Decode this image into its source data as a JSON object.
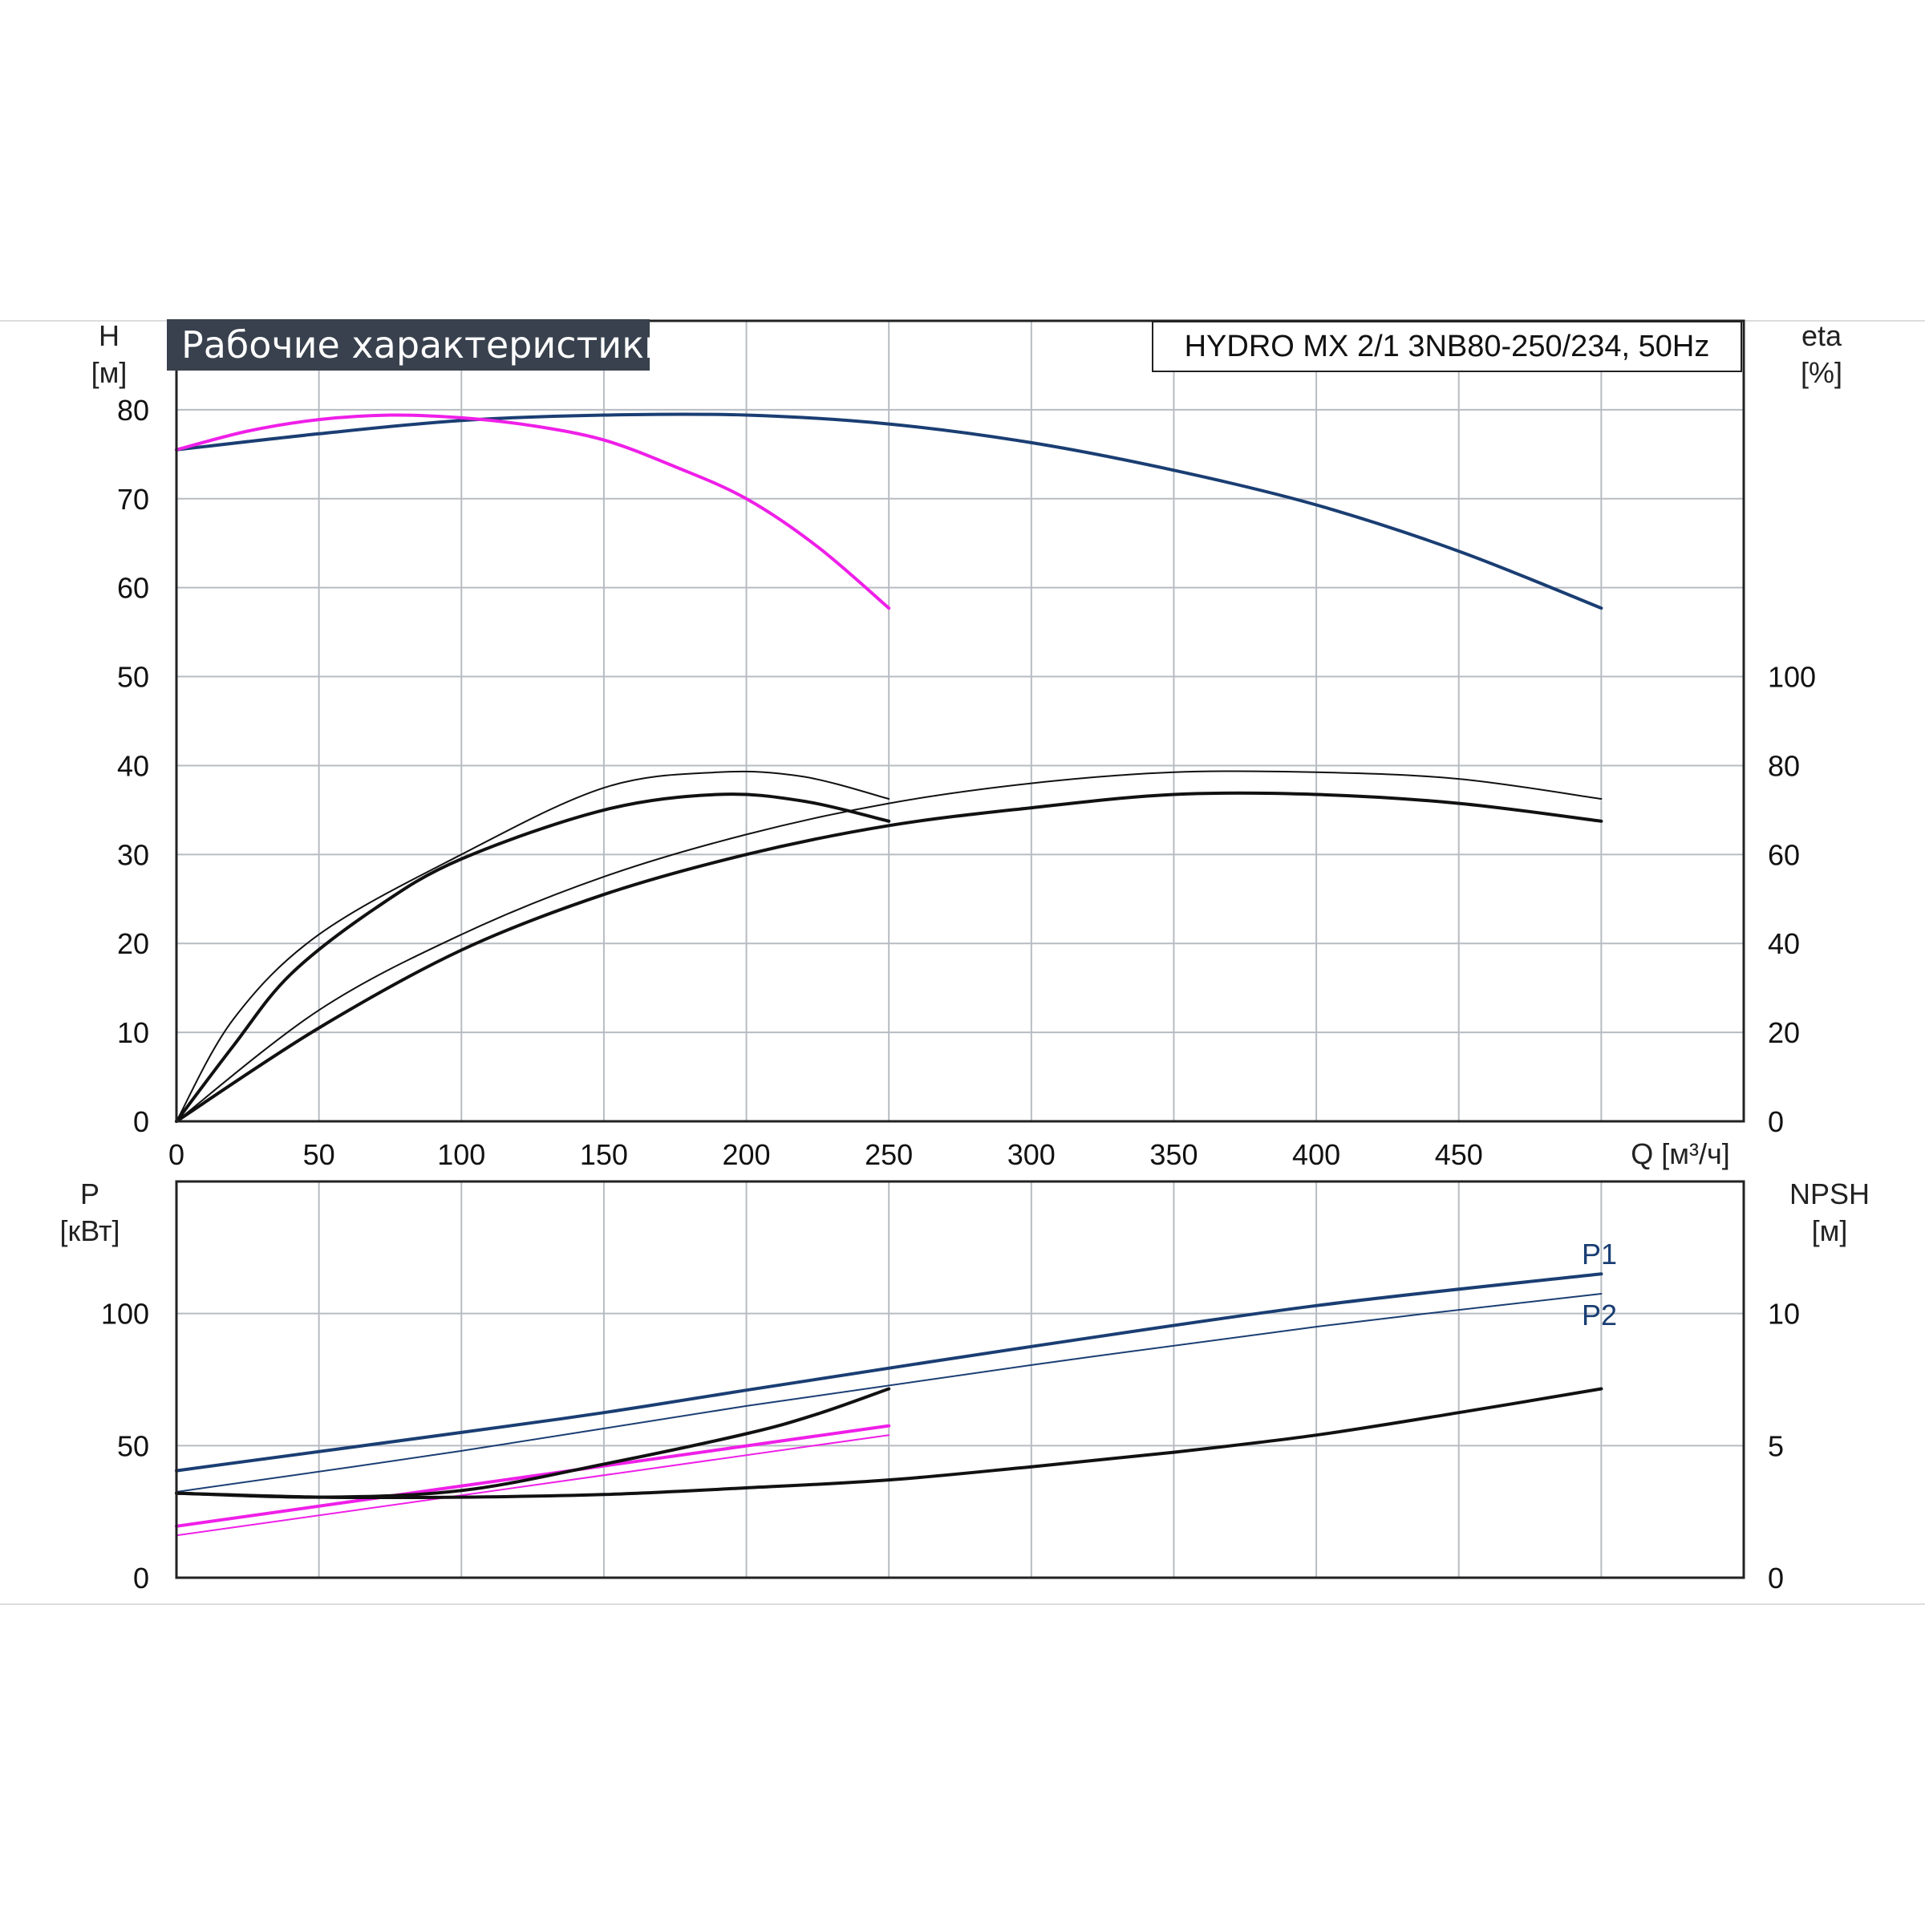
{
  "title": "Рабочие характеристики",
  "model": "HYDRO MX 2/1 3NB80-250/234, 50Hz",
  "colors": {
    "blue": "#1a3e73",
    "magenta": "#ef1fe8",
    "black": "#111111",
    "grid": "#b7bcc2"
  },
  "chart_data": [
    {
      "type": "line",
      "name": "head_efficiency",
      "xlabel": "Q [м³/ч]",
      "ylabel_left": "H\n[м]",
      "ylabel_right": "eta\n[%]",
      "xlim": [
        0,
        550
      ],
      "ylim": [
        0,
        90
      ],
      "y2lim": [
        0,
        180
      ],
      "x_ticks": [
        0,
        50,
        100,
        150,
        200,
        250,
        300,
        350,
        400,
        450
      ],
      "y_ticks": [
        0,
        10,
        20,
        30,
        40,
        50,
        60,
        70,
        80
      ],
      "y2_ticks": [
        0,
        20,
        40,
        60,
        80,
        100
      ],
      "grid": true,
      "series": [
        {
          "color": "blue",
          "width": 4,
          "axis": "left",
          "x": [
            0,
            50,
            100,
            150,
            200,
            250,
            300,
            350,
            400,
            450,
            500
          ],
          "y": [
            75.5,
            77.3,
            78.8,
            79.4,
            79.4,
            78.4,
            76.3,
            73.2,
            69.3,
            64.1,
            57.7
          ]
        },
        {
          "color": "magenta",
          "width": 4,
          "axis": "left",
          "x": [
            0,
            25,
            50,
            75,
            100,
            125,
            150,
            175,
            200,
            225,
            250
          ],
          "y": [
            75.5,
            77.6,
            78.9,
            79.4,
            79.1,
            78.2,
            76.6,
            73.6,
            70.0,
            64.6,
            57.7
          ]
        },
        {
          "color": "black",
          "width": 2,
          "axis": "right",
          "x": [
            0,
            20,
            50,
            100,
            150,
            190,
            220,
            250
          ],
          "y": [
            0,
            23,
            42,
            60,
            75,
            78.5,
            77.5,
            72.5
          ]
        },
        {
          "color": "black",
          "width": 4,
          "axis": "right",
          "x": [
            0,
            20,
            40,
            70,
            100,
            150,
            190,
            220,
            250
          ],
          "y": [
            0,
            17,
            33,
            48,
            59,
            70,
            73.5,
            72,
            67.5
          ]
        },
        {
          "color": "black",
          "width": 2,
          "axis": "right",
          "x": [
            0,
            50,
            100,
            150,
            200,
            250,
            300,
            350,
            400,
            450,
            500
          ],
          "y": [
            0,
            25,
            42,
            55,
            64.5,
            71.5,
            76,
            78.5,
            78.5,
            77,
            72.5
          ]
        },
        {
          "color": "black",
          "width": 4,
          "axis": "right",
          "x": [
            0,
            50,
            100,
            150,
            200,
            250,
            300,
            350,
            400,
            450,
            500
          ],
          "y": [
            0,
            21,
            38.5,
            51,
            60,
            66.5,
            70.5,
            73.5,
            73.5,
            71.5,
            67.5
          ]
        }
      ]
    },
    {
      "type": "line",
      "name": "power_npsh",
      "ylabel_left": "P\n[кВт]",
      "ylabel_right": "NPSH\n[м]",
      "xlim": [
        0,
        550
      ],
      "ylim": [
        0,
        150
      ],
      "y2lim": [
        0,
        15
      ],
      "y_ticks": [
        0,
        50,
        100
      ],
      "y2_ticks": [
        0,
        5,
        10
      ],
      "grid": true,
      "series": [
        {
          "name": "P1",
          "color": "blue",
          "width": 4,
          "axis": "left",
          "x": [
            0,
            100,
            150,
            200,
            300,
            400,
            500
          ],
          "y": [
            40.5,
            55,
            62.5,
            71,
            87.5,
            103,
            115
          ]
        },
        {
          "name": "P2",
          "color": "blue",
          "width": 2,
          "axis": "left",
          "x": [
            0,
            100,
            200,
            300,
            400,
            500
          ],
          "y": [
            32.5,
            48,
            65,
            80.5,
            95,
            107.5
          ]
        },
        {
          "color": "magenta",
          "width": 4,
          "axis": "left",
          "x": [
            0,
            250
          ],
          "y": [
            19.5,
            57.5
          ]
        },
        {
          "color": "magenta",
          "width": 2,
          "axis": "left",
          "x": [
            0,
            250
          ],
          "y": [
            16,
            54
          ]
        },
        {
          "color": "black",
          "width": 4,
          "axis": "left",
          "x": [
            0,
            50,
            100,
            150,
            200,
            225,
            250
          ],
          "y": [
            32,
            30.5,
            33,
            43,
            54.5,
            62,
            71.5
          ]
        },
        {
          "color": "black",
          "width": 4,
          "axis": "right",
          "x": [
            0,
            50,
            100,
            150,
            200,
            250,
            300,
            350,
            400,
            450,
            500
          ],
          "y": [
            3.2,
            3.05,
            3.05,
            3.15,
            3.4,
            3.7,
            4.2,
            4.75,
            5.4,
            6.25,
            7.15
          ]
        }
      ]
    }
  ]
}
